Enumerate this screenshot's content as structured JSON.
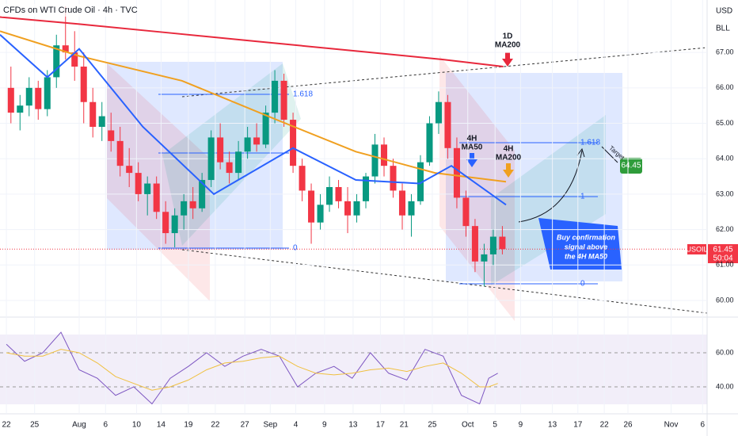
{
  "chart_data": {
    "type": "candlestick",
    "title": "CFDs on WTI Crude Oil · 4h · TVC",
    "currency": "USD",
    "unit": "BLL",
    "symbol": "USOIL",
    "countdown": "50:04",
    "last_price": 61.45,
    "xlim": [
      -8.7,
      69
    ],
    "ylim": [
      59.53,
      68.48
    ],
    "xticks": [
      {
        "value": -8,
        "label": "22"
      },
      {
        "value": -4.9,
        "label": "25"
      },
      {
        "value": 0,
        "label": "Aug"
      },
      {
        "value": 2.9,
        "label": "6"
      },
      {
        "value": 6.3,
        "label": "10"
      },
      {
        "value": 9,
        "label": "14"
      },
      {
        "value": 12,
        "label": "19"
      },
      {
        "value": 14.96,
        "label": "22"
      },
      {
        "value": 18.2,
        "label": "27"
      },
      {
        "value": 21,
        "label": "Sep"
      },
      {
        "value": 23.8,
        "label": "4"
      },
      {
        "value": 26.96,
        "label": "9"
      },
      {
        "value": 30.1,
        "label": "13"
      },
      {
        "value": 33.1,
        "label": "17"
      },
      {
        "value": 35.7,
        "label": "21"
      },
      {
        "value": 38.8,
        "label": "25"
      },
      {
        "value": 42.7,
        "label": "Oct"
      },
      {
        "value": 45.7,
        "label": "5"
      },
      {
        "value": 48.5,
        "label": "9"
      },
      {
        "value": 52,
        "label": "13"
      },
      {
        "value": 54.8,
        "label": "17"
      },
      {
        "value": 57.7,
        "label": "22"
      },
      {
        "value": 60.3,
        "label": "26"
      },
      {
        "value": 65.04,
        "label": "Nov"
      },
      {
        "value": 68.5,
        "label": "6"
      }
    ],
    "yticks": [
      {
        "value": 67,
        "label": "67.00"
      },
      {
        "value": 66,
        "label": "66.00"
      },
      {
        "value": 65,
        "label": "65.00"
      },
      {
        "value": 64,
        "label": "64.00"
      },
      {
        "value": 63,
        "label": "63.00"
      },
      {
        "value": 62,
        "label": "62.00"
      },
      {
        "value": 61,
        "label": "61.00"
      },
      {
        "value": 60,
        "label": "60.00"
      }
    ],
    "grid": true,
    "up_color": "#089981",
    "down_color": "#f23645",
    "candles": {
      "x": [
        -8,
        -7,
        -6,
        -5,
        -4,
        -3,
        -2,
        -1,
        0,
        1,
        2,
        3,
        4,
        5,
        6,
        7,
        8,
        9,
        10,
        11,
        12,
        13,
        14,
        15,
        16,
        17,
        18,
        19,
        20,
        21,
        22,
        23,
        24,
        25,
        26,
        27,
        28,
        29,
        30,
        31,
        32,
        33,
        34,
        35,
        36,
        37,
        38,
        39,
        40,
        41,
        42,
        43,
        44,
        45,
        46
      ],
      "open": [
        66.0,
        65.3,
        65.5,
        66.0,
        65.4,
        66.3,
        67.2,
        67.0,
        66.6,
        65.6,
        64.9,
        64.8,
        64.5,
        63.8,
        63.6,
        63.0,
        63.3,
        62.5,
        61.9,
        62.4,
        62.8,
        62.6,
        63.4,
        64.6,
        63.9,
        63.6,
        64.2,
        64.6,
        64.4,
        65.3,
        66.2,
        65.1,
        63.8,
        63.1,
        62.2,
        62.7,
        63.2,
        62.8,
        62.4,
        62.8,
        63.5,
        64.4,
        63.8,
        63.1,
        62.4,
        62.8,
        63.9,
        65.0,
        65.6,
        64.3,
        62.9,
        62.1,
        61.1,
        61.3,
        61.8
      ],
      "high": [
        66.6,
        65.8,
        66.3,
        66.2,
        66.5,
        67.5,
        68.3,
        67.6,
        67.0,
        66.0,
        65.6,
        65.3,
        64.9,
        64.3,
        63.9,
        63.5,
        63.5,
        62.8,
        62.6,
        63.0,
        63.2,
        63.6,
        64.8,
        65.0,
        64.2,
        64.5,
        64.9,
        65.0,
        65.5,
        66.5,
        66.4,
        65.3,
        64.0,
        63.3,
        63.0,
        63.5,
        63.4,
        63.2,
        63.0,
        63.6,
        64.7,
        64.6,
        64.0,
        63.3,
        63.0,
        64.1,
        65.2,
        65.9,
        65.8,
        64.6,
        63.1,
        62.3,
        61.6,
        62.0,
        62.1
      ],
      "low": [
        65.0,
        64.8,
        65.2,
        65.1,
        65.2,
        66.0,
        66.8,
        66.2,
        65.0,
        64.6,
        64.5,
        64.2,
        63.5,
        63.2,
        62.8,
        62.4,
        62.3,
        61.6,
        61.5,
        62.0,
        62.3,
        62.5,
        63.2,
        63.7,
        63.3,
        63.4,
        64.0,
        64.2,
        64.3,
        65.0,
        64.9,
        63.6,
        62.8,
        61.6,
        62.0,
        62.5,
        62.6,
        61.9,
        62.2,
        62.6,
        63.3,
        63.5,
        62.9,
        62.0,
        61.8,
        62.7,
        63.8,
        64.7,
        64.0,
        62.6,
        61.8,
        60.8,
        60.4,
        61.0,
        61.3
      ],
      "close": [
        65.3,
        65.5,
        66.0,
        65.4,
        66.3,
        67.2,
        67.0,
        66.6,
        65.6,
        64.9,
        65.2,
        64.5,
        63.8,
        63.6,
        63.0,
        63.3,
        62.5,
        61.9,
        62.4,
        62.8,
        62.6,
        63.4,
        64.6,
        63.9,
        63.6,
        64.2,
        64.6,
        64.4,
        65.3,
        66.2,
        65.1,
        63.8,
        63.1,
        62.2,
        62.7,
        63.2,
        62.8,
        62.4,
        62.8,
        63.5,
        64.4,
        63.8,
        63.1,
        62.4,
        62.8,
        63.9,
        65.0,
        65.6,
        64.3,
        62.9,
        62.1,
        61.1,
        61.3,
        61.8,
        61.45
      ]
    },
    "series": [
      {
        "name": "1D MA200",
        "color": "#e8283c",
        "x": [
          -8.7,
          0,
          10,
          20,
          30,
          40,
          46.6
        ],
        "values": [
          68.0,
          67.8,
          67.55,
          67.3,
          67.05,
          66.8,
          66.6
        ]
      },
      {
        "name": "4H MA200",
        "color": "#f0a020",
        "x": [
          -8.7,
          0,
          11.3,
          21.7,
          30.4,
          39.1,
          46.9
        ],
        "values": [
          67.6,
          66.9,
          66.2,
          65.1,
          64.2,
          63.6,
          63.35
        ]
      },
      {
        "name": "4H MA50",
        "color": "#2962ff",
        "x": [
          -8.7,
          -3.5,
          0,
          7,
          14.8,
          23.5,
          30.4,
          37.4,
          40.9,
          46.9
        ],
        "values": [
          67.5,
          66.3,
          67.1,
          64.9,
          63.0,
          64.3,
          63.4,
          63.3,
          63.8,
          62.7
        ]
      }
    ],
    "rsi": {
      "ylim": [
        25.1,
        78.6
      ],
      "yticks": [
        {
          "value": 60,
          "label": "60.00"
        },
        {
          "value": 40,
          "label": "40.00"
        }
      ],
      "color": "#7e57c2",
      "ma_color": "#f0c040",
      "x": [
        -8,
        -6,
        -4,
        -2,
        0,
        2,
        4,
        6,
        8,
        10,
        12,
        14,
        16,
        18,
        20,
        22,
        24,
        26,
        28,
        30,
        32,
        34,
        36,
        38,
        40,
        42,
        44,
        45,
        46
      ],
      "values": [
        65,
        55,
        60,
        72,
        50,
        45,
        35,
        40,
        30,
        45,
        52,
        60,
        52,
        58,
        62,
        58,
        40,
        48,
        52,
        45,
        60,
        48,
        44,
        62,
        58,
        35,
        30,
        45,
        48
      ],
      "ma": [
        60,
        58,
        58,
        62,
        60,
        54,
        46,
        42,
        38,
        40,
        44,
        50,
        54,
        55,
        57,
        58,
        52,
        48,
        47,
        48,
        50,
        51,
        49,
        52,
        54,
        48,
        40,
        40,
        42
      ]
    },
    "annotations": {
      "ma200_1d": [
        "1D",
        "MA200"
      ],
      "ma50_4h": [
        "4H",
        "MA50"
      ],
      "ma200_4h": [
        "4H",
        "MA200"
      ],
      "target": "Target",
      "target_price": 64.45,
      "buy_note": [
        "Buy confirmation",
        "signal above",
        "the 4H MA50"
      ],
      "fib_left": [
        "1.618",
        "0"
      ],
      "fib_right": [
        "1.618",
        "1",
        "0"
      ]
    }
  }
}
